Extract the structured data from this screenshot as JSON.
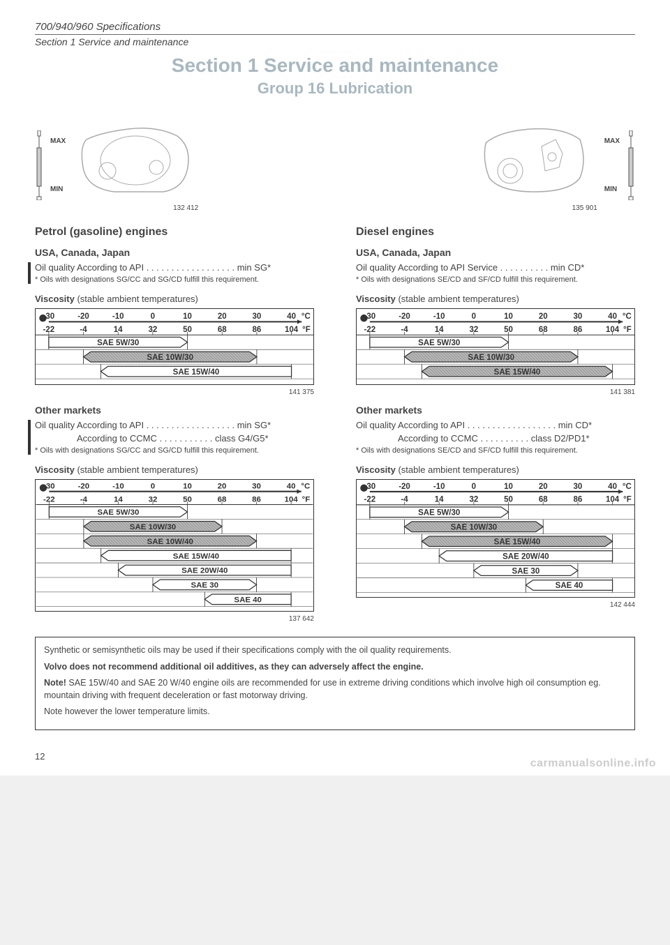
{
  "header": {
    "title": "700/940/960 Specifications",
    "subtitle": "Section 1 Service and maintenance"
  },
  "section_title": "Section 1 Service and maintenance",
  "group_title": "Group 16 Lubrication",
  "figures": {
    "petrol_fig": "132 412",
    "diesel_fig": "135 901",
    "max": "MAX",
    "min": "MIN"
  },
  "petrol": {
    "heading": "Petrol (gasoline) engines",
    "usa": {
      "heading": "USA, Canada, Japan",
      "oil_quality": "Oil quality According to API . . . . . . . . . . . . . . . . . . min SG*",
      "footnote": "* Oils with designations SG/CC and SG/CD fulfill this requirement.",
      "viscosity_label": "Viscosity",
      "viscosity_sub": " (stable ambient temperatures)",
      "chart_num": "141 375"
    },
    "other": {
      "heading": "Other markets",
      "oil_quality": "Oil quality According to API . . . . . . . . . . . . . . . . . . min SG*",
      "ccmc": "According to CCMC . . . . . . . . . . . class G4/G5*",
      "footnote": "* Oils with designations SG/CC and SG/CD fulfill this requirement.",
      "viscosity_label": "Viscosity",
      "viscosity_sub": " (stable ambient temperatures)",
      "chart_num": "137 642"
    }
  },
  "diesel": {
    "heading": "Diesel engines",
    "usa": {
      "heading": "USA, Canada, Japan",
      "oil_quality": "Oil quality According to API Service . . . . . . . . . . min CD*",
      "footnote": "* Oils with designations SE/CD and SF/CD fulfill this requirement.",
      "viscosity_label": "Viscosity",
      "viscosity_sub": " (stable ambient temperatures)",
      "chart_num": "141 381"
    },
    "other": {
      "heading": "Other markets",
      "oil_quality": "Oil quality According to API . . . . . . . . . . . . . . . . . . min CD*",
      "ccmc": "According to CCMC . . . . . . . . . . class D2/PD1*",
      "footnote": "* Oils with designations SE/CD and SF/CD fulfill this requirement.",
      "viscosity_label": "Viscosity",
      "viscosity_sub": " (stable ambient temperatures)",
      "chart_num": "142 444"
    }
  },
  "chart_common": {
    "temps_c": [
      -30,
      -20,
      -10,
      0,
      10,
      20,
      30,
      40
    ],
    "temps_f": [
      -22,
      -4,
      14,
      32,
      50,
      68,
      86,
      104
    ],
    "c_label": "°C",
    "f_label": "°F",
    "colors": {
      "border": "#333333",
      "grid": "#333333",
      "shaded_fill": "#b8b8b8",
      "shaded_pattern": "#888888",
      "text": "#333333",
      "dot": "#333333"
    },
    "font_size": 11,
    "font_weight": "bold"
  },
  "chart_petrol_usa": {
    "rows": [
      {
        "label": "SAE 5W/30",
        "start": -30,
        "end": 10,
        "shaded": false,
        "arrow_left": false,
        "arrow_right": true
      },
      {
        "label": "SAE 10W/30",
        "start": -20,
        "end": 30,
        "shaded": true,
        "arrow_left": true,
        "arrow_right": true
      },
      {
        "label": "SAE 15W/40",
        "start": -15,
        "end": 40,
        "shaded": false,
        "arrow_left": true,
        "arrow_right": false
      }
    ]
  },
  "chart_diesel_usa": {
    "rows": [
      {
        "label": "SAE 5W/30",
        "start": -30,
        "end": 10,
        "shaded": false,
        "arrow_left": false,
        "arrow_right": true
      },
      {
        "label": "SAE 10W/30",
        "start": -20,
        "end": 30,
        "shaded": true,
        "arrow_left": true,
        "arrow_right": true
      },
      {
        "label": "SAE 15W/40",
        "start": -15,
        "end": 40,
        "shaded": true,
        "arrow_left": true,
        "arrow_right": true
      }
    ]
  },
  "chart_petrol_other": {
    "rows": [
      {
        "label": "SAE 5W/30",
        "start": -30,
        "end": 10,
        "shaded": false,
        "arrow_left": false,
        "arrow_right": true
      },
      {
        "label": "SAE 10W/30",
        "start": -20,
        "end": 20,
        "shaded": true,
        "arrow_left": true,
        "arrow_right": true
      },
      {
        "label": "SAE 10W/40",
        "start": -20,
        "end": 30,
        "shaded": true,
        "arrow_left": true,
        "arrow_right": true
      },
      {
        "label": "SAE 15W/40",
        "start": -15,
        "end": 40,
        "shaded": false,
        "arrow_left": true,
        "arrow_right": false
      },
      {
        "label": "SAE 20W/40",
        "start": -10,
        "end": 40,
        "shaded": false,
        "arrow_left": true,
        "arrow_right": false
      },
      {
        "label": "SAE 30",
        "start": 0,
        "end": 30,
        "shaded": false,
        "arrow_left": true,
        "arrow_right": true
      },
      {
        "label": "SAE 40",
        "start": 15,
        "end": 40,
        "shaded": false,
        "arrow_left": true,
        "arrow_right": false
      }
    ]
  },
  "chart_diesel_other": {
    "rows": [
      {
        "label": "SAE 5W/30",
        "start": -30,
        "end": 10,
        "shaded": false,
        "arrow_left": false,
        "arrow_right": true
      },
      {
        "label": "SAE 10W/30",
        "start": -20,
        "end": 20,
        "shaded": true,
        "arrow_left": true,
        "arrow_right": true
      },
      {
        "label": "SAE 15W/40",
        "start": -15,
        "end": 40,
        "shaded": true,
        "arrow_left": true,
        "arrow_right": true
      },
      {
        "label": "SAE 20W/40",
        "start": -10,
        "end": 40,
        "shaded": false,
        "arrow_left": true,
        "arrow_right": false
      },
      {
        "label": "SAE 30",
        "start": 0,
        "end": 30,
        "shaded": false,
        "arrow_left": true,
        "arrow_right": true
      },
      {
        "label": "SAE 40",
        "start": 15,
        "end": 40,
        "shaded": false,
        "arrow_left": true,
        "arrow_right": false
      }
    ]
  },
  "note_box": {
    "p1": "Synthetic or semisynthetic oils may be used if their specifications comply with the oil quality requirements.",
    "p2_bold": "Volvo does not recommend additional oil additives, as they can adversely affect the engine.",
    "p3_bold": "Note!",
    "p3": " SAE 15W/40 and SAE 20 W/40 engine oils are recommended for use in extreme driving conditions which involve high oil consumption eg. mountain driving with frequent deceleration or fast motorway driving.",
    "p4": "Note however the lower temperature limits."
  },
  "page_number": "12",
  "watermark": "carmanualsonline.info"
}
